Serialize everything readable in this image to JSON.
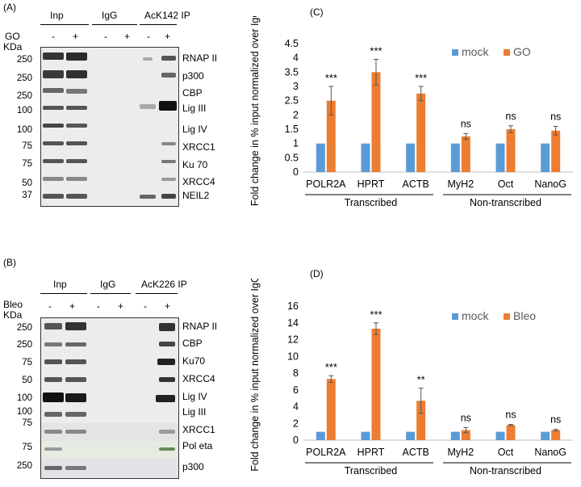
{
  "figure": {
    "panel_a": {
      "label": "(A)",
      "groups": [
        "Inp",
        "IgG",
        "AcK142 IP"
      ],
      "treatment_label": "GO",
      "lane_signs": [
        "-",
        "+",
        "-",
        "+",
        "-",
        "+"
      ],
      "mw_unit": "KDa",
      "mw_markers": [
        "250",
        "250",
        "250",
        "100",
        "100",
        "75",
        "75",
        "50",
        "37"
      ],
      "proteins": [
        "RNAP II",
        "p300",
        "CBP",
        "Lig III",
        "Lig IV",
        "XRCC1",
        "Ku 70",
        "XRCC4",
        "NEIL2"
      ]
    },
    "panel_b": {
      "label": "(B)",
      "groups": [
        "Inp",
        "IgG",
        "AcK226 IP"
      ],
      "treatment_label": "Bleo",
      "lane_signs": [
        "-",
        "+",
        "-",
        "+",
        "-",
        "+"
      ],
      "mw_unit": "KDa",
      "mw_markers": [
        "250",
        "250",
        "75",
        "50",
        "100",
        "100",
        "75",
        "75",
        "250"
      ],
      "proteins": [
        "RNAP II",
        "CBP",
        "Ku70",
        "XRCC4",
        "Lig IV",
        "Lig III",
        "XRCC1",
        "Pol eta",
        "p300"
      ]
    },
    "panel_c": {
      "label": "(C)"
    },
    "panel_d": {
      "label": "(D)"
    }
  },
  "colors": {
    "mock": "#5b9bd5",
    "treated": "#ed7d31"
  },
  "chart_data": [
    {
      "type": "bar",
      "panel": "(C)",
      "categories": [
        "POLR2A",
        "HPRT",
        "ACTB",
        "MyH2",
        "Oct",
        "NanoG"
      ],
      "series": [
        {
          "name": "mock",
          "values": [
            1,
            1,
            1,
            1,
            1,
            1
          ]
        },
        {
          "name": "GO",
          "values": [
            2.5,
            3.5,
            2.75,
            1.25,
            1.5,
            1.45
          ],
          "errors": [
            0.5,
            0.45,
            0.25,
            0.1,
            0.12,
            0.15
          ]
        }
      ],
      "significance": [
        "***",
        "***",
        "***",
        "ns",
        "ns",
        "ns"
      ],
      "ylabel": "Fold change in % input normalized over IgG",
      "ylim": [
        0,
        4.5
      ],
      "yticks": [
        "0",
        "0.5",
        "1",
        "1.5",
        "2",
        "2.5",
        "3",
        "3.5",
        "4",
        "4.5"
      ],
      "group_labels": [
        "Transcribed",
        "Non-transcribed"
      ],
      "legend": [
        "mock",
        "GO"
      ],
      "legend_position": "top-right"
    },
    {
      "type": "bar",
      "panel": "(D)",
      "categories": [
        "POLR2A",
        "HPRT",
        "ACTB",
        "MyH2",
        "Oct",
        "NanoG"
      ],
      "series": [
        {
          "name": "mock",
          "values": [
            1,
            1,
            1,
            1,
            1,
            1
          ]
        },
        {
          "name": "Bleo",
          "values": [
            7.3,
            13.3,
            4.7,
            1.2,
            1.8,
            1.2
          ],
          "errors": [
            0.4,
            0.7,
            1.5,
            0.3,
            0.08,
            0.08
          ]
        }
      ],
      "significance": [
        "***",
        "***",
        "**",
        "ns",
        "ns",
        "ns"
      ],
      "ylabel": "Fold change in % input normalized over IgG",
      "ylim": [
        0,
        16
      ],
      "yticks": [
        "0",
        "2",
        "4",
        "6",
        "8",
        "10",
        "12",
        "14",
        "16"
      ],
      "group_labels": [
        "Transcribed",
        "Non-transcribed"
      ],
      "legend": [
        "mock",
        "Bleo"
      ],
      "legend_position": "top-right"
    }
  ]
}
